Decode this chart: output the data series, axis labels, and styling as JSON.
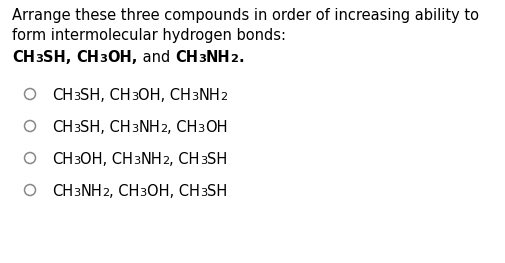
{
  "background_color": "#ffffff",
  "text_color": "#000000",
  "q_line1": "Arrange these three compounds in order of increasing ability to",
  "q_line2": "form intermolecular hydrogen bonds:",
  "font_size": 10.5,
  "option_font_size": 10.5,
  "options": [
    [
      [
        "CH",
        1
      ],
      [
        "3",
        0
      ],
      [
        "SH, CH",
        1
      ],
      [
        "3",
        0
      ],
      [
        "OH, CH",
        1
      ],
      [
        "3",
        0
      ],
      [
        "NH",
        1
      ],
      [
        "2",
        0
      ]
    ],
    [
      [
        "CH",
        1
      ],
      [
        "3",
        0
      ],
      [
        "SH, CH",
        1
      ],
      [
        "3",
        0
      ],
      [
        "NH",
        1
      ],
      [
        "2",
        0
      ],
      [
        ", CH",
        1
      ],
      [
        "3",
        0
      ],
      [
        "OH",
        1
      ]
    ],
    [
      [
        "CH",
        1
      ],
      [
        "3",
        0
      ],
      [
        "OH, CH",
        1
      ],
      [
        "3",
        0
      ],
      [
        "NH",
        1
      ],
      [
        "2",
        0
      ],
      [
        ", CH",
        1
      ],
      [
        "3",
        0
      ],
      [
        "SH",
        1
      ]
    ],
    [
      [
        "CH",
        1
      ],
      [
        "3",
        0
      ],
      [
        "NH",
        1
      ],
      [
        "2",
        0
      ],
      [
        ", CH",
        1
      ],
      [
        "3",
        0
      ],
      [
        "OH, CH",
        1
      ],
      [
        "3",
        0
      ],
      [
        "SH",
        1
      ]
    ]
  ],
  "bold_line": [
    [
      "CH",
      1
    ],
    [
      "3",
      0
    ],
    [
      "SH, ",
      1
    ],
    [
      "CH",
      1
    ],
    [
      "3",
      0
    ],
    [
      "OH,",
      1
    ],
    [
      " and ",
      2
    ],
    [
      "CH",
      1
    ],
    [
      "3",
      0
    ],
    [
      "NH",
      1
    ],
    [
      "2",
      0
    ],
    [
      ".",
      1
    ]
  ]
}
